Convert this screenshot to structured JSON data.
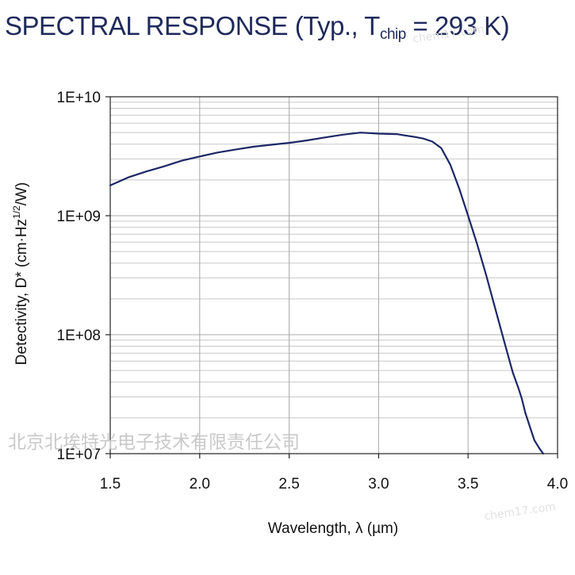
{
  "title": {
    "main": "SPECTRAL RESPONSE (Typ., T",
    "sub": "chip",
    "suffix": " = 293 K)"
  },
  "watermark": {
    "text": "北京北埃特光电子技术有限责任公司",
    "site": "chem17.com"
  },
  "colors": {
    "curve": "#1c2766",
    "grid": "#c8c8c8",
    "axis": "#222222",
    "title": "#1f2a5c"
  },
  "chart_data": {
    "type": "line",
    "title": "SPECTRAL RESPONSE (Typ., Tchip = 293 K)",
    "xlabel": "Wavelength, λ (µm)",
    "ylabel": "Detectivity, D* (cm·Hz1/2/W)",
    "ylabel_parts": {
      "main": "Detectivity, D* (cm·Hz",
      "sup": "1/2",
      "end": "/W)"
    },
    "x_scale": "linear",
    "y_scale": "log",
    "xlim": [
      1.5,
      4.0
    ],
    "ylim": [
      10000000,
      10000000000
    ],
    "xticks": [
      1.5,
      2.0,
      2.5,
      3.0,
      3.5,
      4.0
    ],
    "xtick_labels": [
      "1.5",
      "2.0",
      "2.5",
      "3.0",
      "3.5",
      "4.0"
    ],
    "yticks": [
      10000000,
      100000000,
      1000000000,
      10000000000
    ],
    "ytick_labels": [
      "1E+07",
      "1E+08",
      "1E+09",
      "1E+10"
    ],
    "grid": true,
    "legend": false,
    "series": [
      {
        "x": [
          1.5,
          1.6,
          1.7,
          1.8,
          1.9,
          2.0,
          2.1,
          2.2,
          2.3,
          2.4,
          2.5,
          2.6,
          2.7,
          2.8,
          2.9,
          3.0,
          3.1,
          3.2,
          3.25,
          3.3,
          3.35,
          3.4,
          3.45,
          3.5,
          3.55,
          3.6,
          3.65,
          3.7,
          3.75,
          3.78,
          3.8,
          3.82,
          3.85,
          3.87,
          3.9,
          3.92
        ],
        "y": [
          1800000000,
          2100000000,
          2350000000,
          2600000000,
          2900000000,
          3150000000,
          3400000000,
          3600000000,
          3800000000,
          3950000000,
          4100000000,
          4300000000,
          4550000000,
          4800000000,
          5000000000,
          4900000000,
          4850000000,
          4600000000,
          4450000000,
          4200000000,
          3700000000,
          2700000000,
          1700000000,
          1000000000,
          580000000,
          320000000,
          170000000,
          90000000,
          48000000,
          36000000,
          29000000,
          22000000,
          16000000,
          13000000,
          11000000,
          10000000
        ]
      }
    ]
  }
}
